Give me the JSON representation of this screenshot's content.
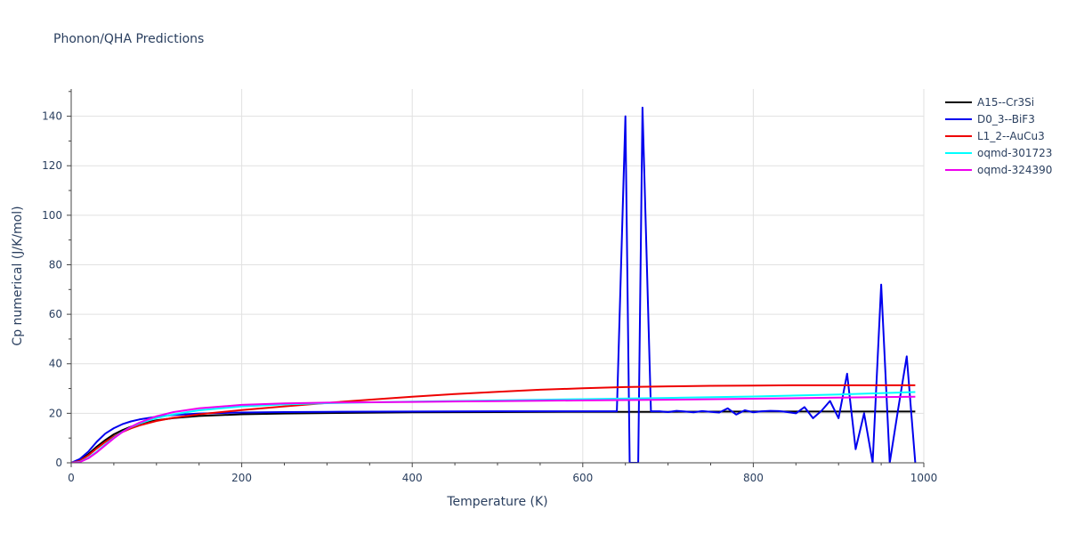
{
  "title": "Phonon/QHA Predictions",
  "chart_data": {
    "type": "line",
    "title": "Phonon/QHA Predictions",
    "xlabel": "Temperature (K)",
    "ylabel": "Cp numerical (J/K/mol)",
    "xlim": [
      0,
      1000
    ],
    "ylim": [
      0,
      151
    ],
    "xticks": [
      0,
      200,
      400,
      600,
      800,
      1000
    ],
    "yticks": [
      0,
      20,
      40,
      60,
      80,
      100,
      120,
      140
    ],
    "grid": true,
    "legend_position": "top-right",
    "series": [
      {
        "name": "A15--Cr3Si",
        "color": "#000000",
        "x": [
          0,
          10,
          20,
          30,
          40,
          50,
          60,
          70,
          80,
          100,
          120,
          150,
          200,
          250,
          300,
          400,
          500,
          600,
          700,
          800,
          900,
          990
        ],
        "y": [
          0,
          1.0,
          3.5,
          6.5,
          9.2,
          11.5,
          13.2,
          14.6,
          15.7,
          17.2,
          18.1,
          18.9,
          19.6,
          19.9,
          20.1,
          20.4,
          20.5,
          20.6,
          20.6,
          20.7,
          20.7,
          20.7
        ]
      },
      {
        "name": "D0_3--BiF3",
        "color": "#0000ee",
        "x": [
          0,
          10,
          20,
          30,
          40,
          50,
          60,
          70,
          80,
          100,
          120,
          150,
          200,
          250,
          300,
          400,
          500,
          600,
          630,
          640,
          650,
          655,
          660,
          665,
          670,
          680,
          690,
          700,
          710,
          720,
          730,
          740,
          750,
          760,
          770,
          780,
          790,
          800,
          810,
          820,
          830,
          840,
          850,
          860,
          870,
          880,
          890,
          900,
          910,
          920,
          930,
          940,
          950,
          960,
          970,
          980,
          990
        ],
        "y": [
          0,
          1.5,
          4.5,
          8.5,
          11.8,
          14.0,
          15.6,
          16.7,
          17.5,
          18.6,
          19.3,
          19.9,
          20.3,
          20.5,
          20.6,
          20.7,
          20.8,
          20.8,
          20.8,
          20.8,
          140,
          0,
          0,
          0,
          143.5,
          20.8,
          20.8,
          20.5,
          21.0,
          20.7,
          20.4,
          20.9,
          20.6,
          20.3,
          22.0,
          19.5,
          21.2,
          20.4,
          20.8,
          21.0,
          20.9,
          20.5,
          20.0,
          22.5,
          18.0,
          21.0,
          25.0,
          18.0,
          36.0,
          5.5,
          20.0,
          0,
          72.0,
          0,
          22.0,
          43.0,
          0
        ]
      },
      {
        "name": "L1_2--AuCu3",
        "color": "#ee0000",
        "x": [
          0,
          10,
          20,
          30,
          40,
          50,
          60,
          70,
          80,
          100,
          120,
          150,
          200,
          250,
          300,
          350,
          400,
          450,
          500,
          550,
          600,
          650,
          700,
          750,
          800,
          850,
          900,
          950,
          990
        ],
        "y": [
          0,
          0.8,
          3.0,
          5.8,
          8.4,
          10.6,
          12.4,
          13.9,
          15.1,
          16.9,
          18.2,
          19.6,
          21.3,
          22.8,
          24.2,
          25.5,
          26.7,
          27.8,
          28.7,
          29.5,
          30.1,
          30.6,
          30.9,
          31.1,
          31.2,
          31.3,
          31.3,
          31.3,
          31.3
        ]
      },
      {
        "name": "oqmd-301723",
        "color": "#00ffff",
        "x": [
          0,
          10,
          20,
          30,
          40,
          50,
          60,
          70,
          80,
          100,
          120,
          150,
          200,
          250,
          300,
          400,
          500,
          600,
          700,
          800,
          900,
          990
        ],
        "y": [
          0,
          0.4,
          2.0,
          4.5,
          7.4,
          10.1,
          12.5,
          14.4,
          15.9,
          18.1,
          19.6,
          21.2,
          22.8,
          23.6,
          24.1,
          24.7,
          25.2,
          25.7,
          26.2,
          26.8,
          27.6,
          28.6
        ]
      },
      {
        "name": "oqmd-324390",
        "color": "#ee00ee",
        "x": [
          0,
          10,
          20,
          30,
          40,
          50,
          60,
          70,
          80,
          100,
          120,
          150,
          200,
          250,
          300,
          400,
          500,
          600,
          700,
          800,
          900,
          990
        ],
        "y": [
          0,
          0.3,
          1.8,
          4.2,
          7.1,
          9.9,
          12.4,
          14.5,
          16.2,
          18.8,
          20.5,
          22.0,
          23.4,
          24.0,
          24.3,
          24.6,
          24.9,
          25.2,
          25.5,
          25.9,
          26.3,
          26.7
        ]
      }
    ]
  }
}
